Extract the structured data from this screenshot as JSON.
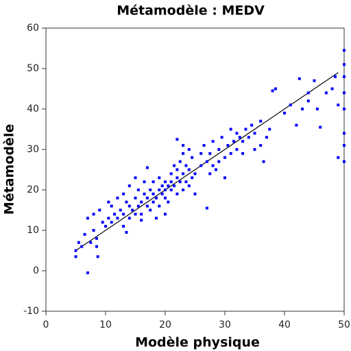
{
  "chart_data": {
    "type": "scatter",
    "title": "Métamodèle : MEDV",
    "x_label": "Modèle physique",
    "y_label": "Métamodèle",
    "xlim": [
      0,
      50
    ],
    "ylim": [
      -10,
      60
    ],
    "xticks": [
      0,
      10,
      20,
      30,
      40,
      50
    ],
    "yticks": [
      -10,
      0,
      10,
      20,
      30,
      40,
      50,
      60
    ],
    "series": [
      {
        "color": "#0000ff",
        "x": [
          5,
          5,
          5.5,
          6,
          6.5,
          7,
          7,
          7.5,
          8,
          8,
          8.5,
          8.5,
          8.7,
          9,
          9.5,
          10,
          10.5,
          10.5,
          11,
          11,
          11.5,
          12,
          12,
          12.5,
          13,
          13,
          13,
          13.5,
          13.5,
          14,
          14,
          14,
          14.5,
          15,
          15,
          15,
          15.5,
          15.5,
          16,
          16,
          16,
          16.5,
          16.5,
          17,
          17,
          17,
          17.5,
          17.5,
          18,
          18,
          18,
          18.5,
          18.5,
          19,
          19,
          19,
          19.5,
          19.5,
          20,
          20,
          20,
          20,
          20.5,
          20.5,
          21,
          21,
          21,
          21.5,
          21.5,
          22,
          22,
          22,
          22,
          22.5,
          22.5,
          23,
          23,
          23,
          23,
          23.5,
          23.5,
          24,
          24,
          24,
          24.5,
          24.5,
          25,
          25,
          26,
          26,
          26.5,
          27,
          27,
          27.5,
          27.5,
          28,
          28,
          28.5,
          29,
          29,
          29.5,
          30,
          30,
          30.5,
          31,
          31,
          31.5,
          32,
          32,
          32.5,
          33,
          33,
          33.5,
          34,
          34.5,
          35,
          35,
          36,
          36,
          36.5,
          37,
          37.5,
          38,
          38.5,
          40,
          41,
          42,
          42.5,
          43,
          44,
          44,
          45,
          45.5,
          46,
          47,
          48,
          48.5,
          49,
          49,
          50,
          50,
          50,
          50,
          50,
          50,
          50,
          50
        ],
        "values": [
          5,
          3.5,
          7,
          6,
          9,
          -0.5,
          13,
          7,
          10,
          14,
          6,
          8,
          3.5,
          15,
          12,
          11,
          13,
          17,
          12,
          16,
          14,
          13,
          18,
          15,
          11,
          14,
          19,
          17,
          9.5,
          13,
          16,
          21,
          15,
          14,
          18,
          23,
          16,
          20,
          14,
          17,
          12.5,
          19,
          22,
          16,
          18,
          25.5,
          15,
          20,
          17,
          19,
          22,
          13,
          18,
          20,
          16,
          23,
          19,
          21,
          18,
          20,
          22,
          14,
          17,
          21,
          20,
          22,
          24,
          21,
          26,
          19,
          23,
          25,
          32.5,
          22,
          27,
          20,
          24,
          29,
          31,
          22,
          26,
          21,
          25,
          30,
          23,
          28,
          24,
          19,
          26,
          29,
          31,
          27,
          15.5,
          24,
          29,
          26,
          32,
          25,
          27,
          30,
          33,
          28,
          23,
          31,
          29,
          35,
          32,
          30,
          34,
          33,
          32,
          29,
          35,
          33,
          36,
          34,
          30,
          31,
          37,
          27,
          33,
          35,
          44.5,
          45,
          39,
          41,
          36,
          47.5,
          40,
          42,
          44,
          47,
          40,
          35.5,
          44,
          45,
          48,
          41,
          28,
          54.5,
          51,
          44,
          48,
          40,
          34,
          27,
          31
        ]
      }
    ],
    "reference_line": {
      "color": "#000000",
      "x": [
        5,
        49
      ],
      "values": [
        5,
        49
      ]
    }
  }
}
